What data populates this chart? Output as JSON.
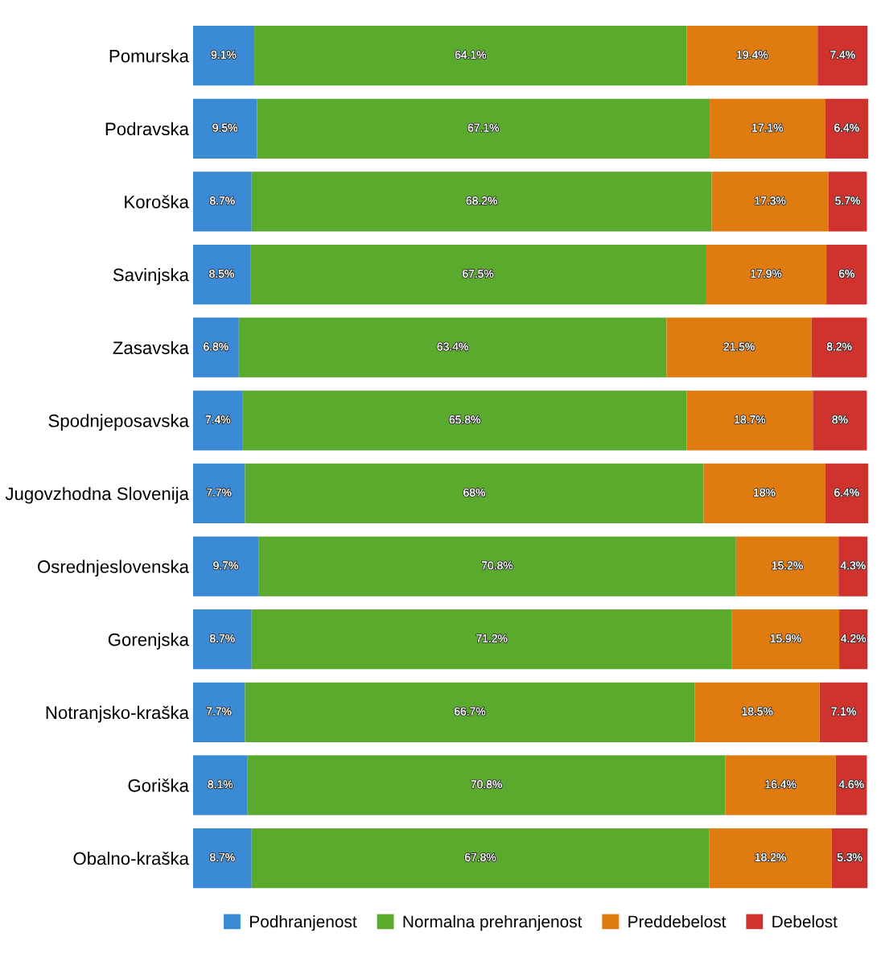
{
  "chart_data": {
    "type": "bar",
    "orientation": "horizontal",
    "stacked": true,
    "legend": "bottom",
    "grid": false,
    "categories": [
      "Pomurska",
      "Podravska",
      "Koroška",
      "Savinjska",
      "Zasavska",
      "Spodnjeposavska",
      "Jugovzhodna Slovenija",
      "Osrednjeslovenska",
      "Gorenjska",
      "Notranjsko-kraška",
      "Goriška",
      "Obalno-kraška"
    ],
    "series": [
      {
        "name": "Podhranjenost",
        "color": "#3a8ad6",
        "values": [
          9.1,
          9.5,
          8.7,
          8.5,
          6.8,
          7.4,
          7.7,
          9.7,
          8.7,
          7.7,
          8.1,
          8.7
        ],
        "value_labels": [
          "9.1%",
          "9.5%",
          "8.7%",
          "8.5%",
          "6.8%",
          "7.4%",
          "7.7%",
          "9.7%",
          "8.7%",
          "7.7%",
          "8.1%",
          "8.7%"
        ]
      },
      {
        "name": "Normalna prehranjenost",
        "color": "#5aaa2e",
        "values": [
          64.1,
          67.1,
          68.2,
          67.5,
          63.4,
          65.8,
          68,
          70.8,
          71.2,
          66.7,
          70.8,
          67.8
        ],
        "value_labels": [
          "64.1%",
          "67.1%",
          "68.2%",
          "67.5%",
          "63.4%",
          "65.8%",
          "68%",
          "70.8%",
          "71.2%",
          "66.7%",
          "70.8%",
          "67.8%"
        ]
      },
      {
        "name": "Preddebelost",
        "color": "#e07b10",
        "values": [
          19.4,
          17.1,
          17.3,
          17.9,
          21.5,
          18.7,
          18,
          15.2,
          15.9,
          18.5,
          16.4,
          18.2
        ],
        "value_labels": [
          "19.4%",
          "17.1%",
          "17.3%",
          "17.9%",
          "21.5%",
          "18.7%",
          "18%",
          "15.2%",
          "15.9%",
          "18.5%",
          "16.4%",
          "18.2%"
        ]
      },
      {
        "name": "Debelost",
        "color": "#d0322e",
        "values": [
          7.4,
          6.4,
          5.7,
          6,
          8.2,
          8,
          6.4,
          4.3,
          4.2,
          7.1,
          4.6,
          5.3
        ],
        "value_labels": [
          "7.4%",
          "6.4%",
          "5.7%",
          "6%",
          "8.2%",
          "8%",
          "6.4%",
          "4.3%",
          "4.2%",
          "7.1%",
          "4.6%",
          "5.3%"
        ]
      }
    ]
  }
}
